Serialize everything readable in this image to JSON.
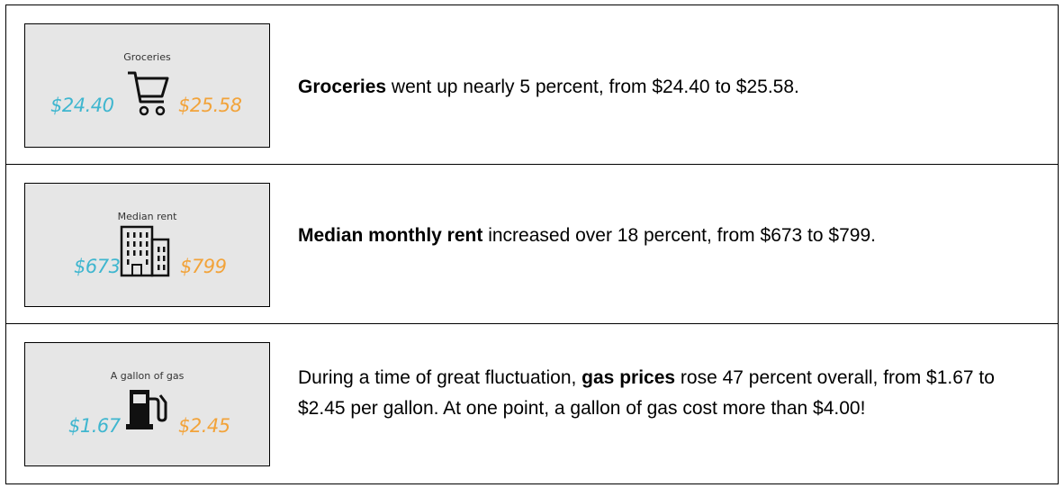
{
  "rows": [
    {
      "card_title": "Groceries",
      "old_value": "$24.40",
      "new_value": "$25.58",
      "icon": "shopping-cart-icon",
      "bold": "Groceries",
      "text": " went up nearly 5 percent, from $24.40 to $25.58."
    },
    {
      "card_title": "Median rent",
      "old_value": "$673",
      "new_value": "$799",
      "icon": "building-icon",
      "bold": "Median monthly rent",
      "text": " increased over 18 percent, from $673 to $799."
    },
    {
      "card_title": "A gallon of gas",
      "old_value": "$1.67",
      "new_value": "$2.45",
      "icon": "gas-pump-icon",
      "pre": "During a time of great fluctuation, ",
      "bold": "gas prices",
      "text": " rose 47 percent overall, from $1.67 to $2.45 per gallon. At one point, a gallon of gas cost more than $4.00!"
    }
  ],
  "colors": {
    "old": "#3fb6cf",
    "new": "#f2a33a",
    "card_bg": "#e6e6e6"
  }
}
